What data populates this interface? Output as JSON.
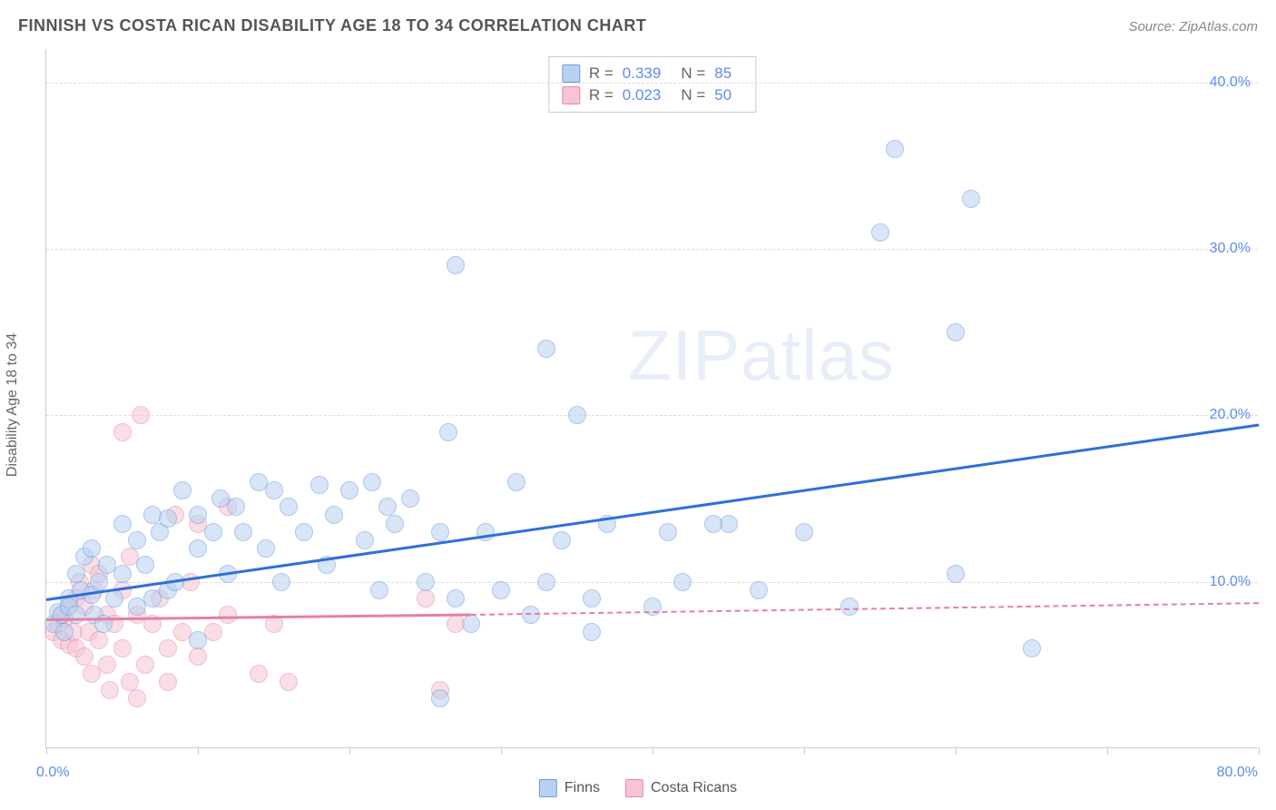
{
  "title": "FINNISH VS COSTA RICAN DISABILITY AGE 18 TO 34 CORRELATION CHART",
  "source": "Source: ZipAtlas.com",
  "y_axis_title": "Disability Age 18 to 34",
  "watermark": "ZIPatlas",
  "chart": {
    "type": "scatter",
    "xlim": [
      0,
      80
    ],
    "ylim": [
      0,
      42
    ],
    "x_label_min": "0.0%",
    "x_label_max": "80.0%",
    "x_ticks": [
      0,
      10,
      20,
      30,
      40,
      50,
      60,
      70,
      80
    ],
    "y_ticks": [
      {
        "v": 10,
        "label": "10.0%"
      },
      {
        "v": 20,
        "label": "20.0%"
      },
      {
        "v": 30,
        "label": "30.0%"
      },
      {
        "v": 40,
        "label": "40.0%"
      }
    ],
    "grid_color": "#dddddd",
    "background_color": "#ffffff",
    "marker_radius": 10,
    "marker_opacity": 0.55
  },
  "series": {
    "finns": {
      "label": "Finns",
      "fill": "#b7d1f2",
      "stroke": "#6a9be0",
      "line_color": "#2e6fd9",
      "r_value": "0.339",
      "n_value": "85",
      "trend": {
        "x1": 0,
        "y1": 9.0,
        "x2": 80,
        "y2": 19.5
      },
      "points": [
        [
          0.5,
          7.5
        ],
        [
          0.8,
          8.2
        ],
        [
          1.0,
          8.0
        ],
        [
          1.2,
          7.0
        ],
        [
          1.5,
          9.0
        ],
        [
          1.5,
          8.5
        ],
        [
          2.0,
          10.5
        ],
        [
          2.0,
          8.0
        ],
        [
          2.3,
          9.5
        ],
        [
          2.5,
          11.5
        ],
        [
          3.0,
          9.2
        ],
        [
          3.0,
          12.0
        ],
        [
          3.2,
          8.0
        ],
        [
          3.5,
          10.0
        ],
        [
          3.8,
          7.5
        ],
        [
          4.0,
          11.0
        ],
        [
          4.5,
          9.0
        ],
        [
          5.0,
          13.5
        ],
        [
          5.0,
          10.5
        ],
        [
          6.0,
          8.5
        ],
        [
          6.0,
          12.5
        ],
        [
          6.5,
          11.0
        ],
        [
          7.0,
          14.0
        ],
        [
          7.5,
          13.0
        ],
        [
          8.0,
          9.5
        ],
        [
          8.0,
          13.8
        ],
        [
          8.5,
          10.0
        ],
        [
          9.0,
          15.5
        ],
        [
          10.0,
          12.0
        ],
        [
          10.0,
          14.0
        ],
        [
          10.0,
          6.5
        ],
        [
          11.0,
          13.0
        ],
        [
          11.5,
          15.0
        ],
        [
          12.0,
          10.5
        ],
        [
          12.5,
          14.5
        ],
        [
          13.0,
          13.0
        ],
        [
          14.0,
          16.0
        ],
        [
          14.5,
          12.0
        ],
        [
          15.0,
          15.5
        ],
        [
          15.5,
          10.0
        ],
        [
          16.0,
          14.5
        ],
        [
          17.0,
          13.0
        ],
        [
          18.0,
          15.8
        ],
        [
          18.5,
          11.0
        ],
        [
          19.0,
          14.0
        ],
        [
          20.0,
          15.5
        ],
        [
          21.0,
          12.5
        ],
        [
          21.5,
          16.0
        ],
        [
          22.0,
          9.5
        ],
        [
          23.0,
          13.5
        ],
        [
          24.0,
          15.0
        ],
        [
          25.0,
          10.0
        ],
        [
          26.0,
          3.0
        ],
        [
          26.0,
          13.0
        ],
        [
          26.5,
          19.0
        ],
        [
          27.0,
          9.0
        ],
        [
          27.0,
          29.0
        ],
        [
          28.0,
          7.5
        ],
        [
          29.0,
          13.0
        ],
        [
          30.0,
          9.5
        ],
        [
          31.0,
          16.0
        ],
        [
          32.0,
          8.0
        ],
        [
          33.0,
          24.0
        ],
        [
          33.0,
          10.0
        ],
        [
          34.0,
          12.5
        ],
        [
          35.0,
          20.0
        ],
        [
          36.0,
          7.0
        ],
        [
          36.0,
          9.0
        ],
        [
          37.0,
          13.5
        ],
        [
          40.0,
          8.5
        ],
        [
          41.0,
          13.0
        ],
        [
          42.0,
          10.0
        ],
        [
          45.0,
          13.5
        ],
        [
          47.0,
          9.5
        ],
        [
          50.0,
          13.0
        ],
        [
          55.0,
          31.0
        ],
        [
          56.0,
          36.0
        ],
        [
          60.0,
          10.5
        ],
        [
          60.0,
          25.0
        ],
        [
          61.0,
          33.0
        ],
        [
          65.0,
          6.0
        ],
        [
          53.0,
          8.5
        ],
        [
          44.0,
          13.5
        ],
        [
          22.5,
          14.5
        ],
        [
          7.0,
          9.0
        ]
      ]
    },
    "costa_ricans": {
      "label": "Costa Ricans",
      "fill": "#f6c4d2",
      "stroke": "#e58aa5",
      "line_color": "#e87fa0",
      "r_value": "0.023",
      "n_value": "50",
      "trend_solid": {
        "x1": 0,
        "y1": 7.8,
        "x2": 28,
        "y2": 8.1
      },
      "trend_dash": {
        "x1": 28,
        "y1": 8.1,
        "x2": 80,
        "y2": 8.8
      },
      "points": [
        [
          0.5,
          7.0
        ],
        [
          0.8,
          7.5
        ],
        [
          1.0,
          8.0
        ],
        [
          1.0,
          6.5
        ],
        [
          1.2,
          7.8
        ],
        [
          1.5,
          6.2
        ],
        [
          1.5,
          8.5
        ],
        [
          1.8,
          7.0
        ],
        [
          2.0,
          9.0
        ],
        [
          2.0,
          6.0
        ],
        [
          2.2,
          10.0
        ],
        [
          2.5,
          5.5
        ],
        [
          2.5,
          8.5
        ],
        [
          2.8,
          7.0
        ],
        [
          3.0,
          11.0
        ],
        [
          3.0,
          4.5
        ],
        [
          3.2,
          9.5
        ],
        [
          3.5,
          6.5
        ],
        [
          3.5,
          10.5
        ],
        [
          4.0,
          5.0
        ],
        [
          4.0,
          8.0
        ],
        [
          4.2,
          3.5
        ],
        [
          4.5,
          7.5
        ],
        [
          5.0,
          6.0
        ],
        [
          5.0,
          9.5
        ],
        [
          5.0,
          19.0
        ],
        [
          5.5,
          4.0
        ],
        [
          5.5,
          11.5
        ],
        [
          6.0,
          3.0
        ],
        [
          6.0,
          8.0
        ],
        [
          6.2,
          20.0
        ],
        [
          6.5,
          5.0
        ],
        [
          7.0,
          7.5
        ],
        [
          7.5,
          9.0
        ],
        [
          8.0,
          6.0
        ],
        [
          8.0,
          4.0
        ],
        [
          8.5,
          14.0
        ],
        [
          9.0,
          7.0
        ],
        [
          9.5,
          10.0
        ],
        [
          10.0,
          5.5
        ],
        [
          10.0,
          13.5
        ],
        [
          11.0,
          7.0
        ],
        [
          12.0,
          8.0
        ],
        [
          12.0,
          14.5
        ],
        [
          14.0,
          4.5
        ],
        [
          15.0,
          7.5
        ],
        [
          16.0,
          4.0
        ],
        [
          25.0,
          9.0
        ],
        [
          26.0,
          3.5
        ],
        [
          27.0,
          7.5
        ]
      ]
    }
  },
  "stats_labels": {
    "R": "R =",
    "N": "N ="
  }
}
